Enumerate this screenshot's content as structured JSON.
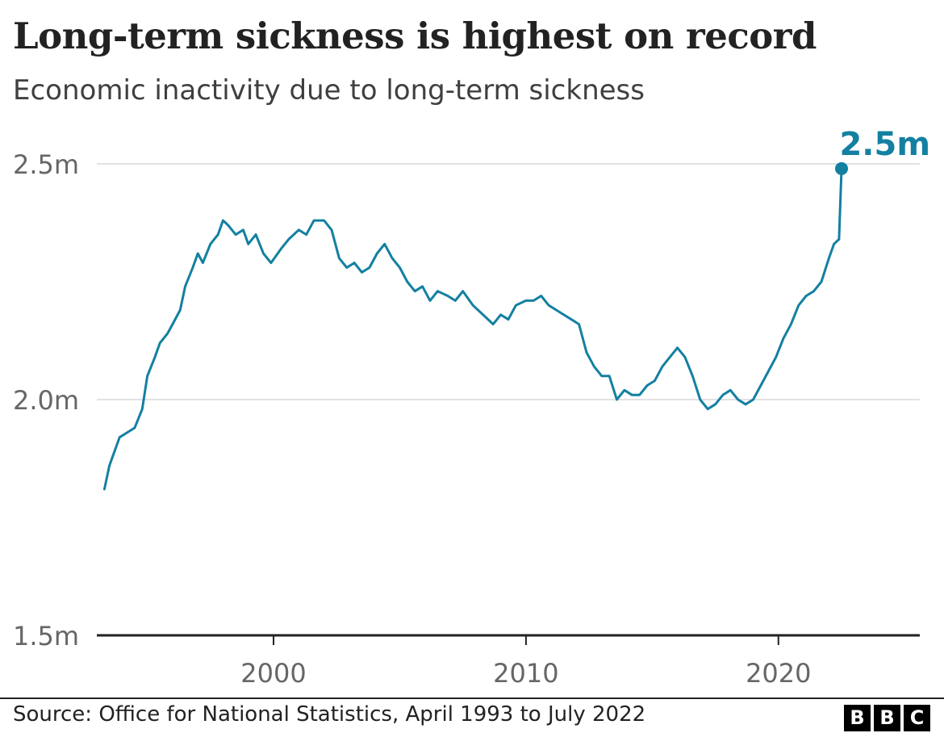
{
  "chart_data": {
    "type": "line",
    "title": "Long-term sickness is highest on record",
    "subtitle": "Economic inactivity due to long-term sickness",
    "source": "Source: Office for National Statistics, April 1993 to July 2022",
    "ylim": [
      1.5,
      2.5
    ],
    "xlim": [
      1993.0,
      2025.6
    ],
    "y_ticks": [
      {
        "value": 2.5,
        "label": "2.5m"
      },
      {
        "value": 2.0,
        "label": "2.0m"
      },
      {
        "value": 1.5,
        "label": "1.5m"
      }
    ],
    "x_ticks": [
      {
        "value": 2000,
        "label": "2000"
      },
      {
        "value": 2010,
        "label": "2010"
      },
      {
        "value": 2020,
        "label": "2020"
      }
    ],
    "grid": true,
    "line_color": "#1380a1",
    "grid_color": "#d9d9d9",
    "axis_color": "#222222",
    "annotation": {
      "x": 2022.5,
      "y": 2.49,
      "label": "2.5m"
    },
    "series": [
      {
        "x": [
          1993.3,
          1993.5,
          1993.7,
          1993.9,
          1994.2,
          1994.5,
          1994.8,
          1995.0,
          1995.3,
          1995.5,
          1995.8,
          1996.0,
          1996.3,
          1996.5,
          1996.8,
          1997.0,
          1997.2,
          1997.5,
          1997.8,
          1998.0,
          1998.2,
          1998.5,
          1998.8,
          1999.0,
          1999.3,
          1999.6,
          1999.9,
          2000.3,
          2000.6,
          2001.0,
          2001.3,
          2001.6,
          2002.0,
          2002.3,
          2002.6,
          2002.9,
          2003.2,
          2003.5,
          2003.8,
          2004.1,
          2004.4,
          2004.7,
          2005.0,
          2005.3,
          2005.6,
          2005.9,
          2006.2,
          2006.5,
          2006.9,
          2007.2,
          2007.5,
          2007.9,
          2008.3,
          2008.7,
          2009.0,
          2009.3,
          2009.6,
          2010.0,
          2010.3,
          2010.6,
          2010.9,
          2011.2,
          2011.5,
          2011.8,
          2012.1,
          2012.4,
          2012.7,
          2013.0,
          2013.3,
          2013.6,
          2013.9,
          2014.2,
          2014.5,
          2014.8,
          2015.1,
          2015.4,
          2015.7,
          2016.0,
          2016.3,
          2016.6,
          2016.9,
          2017.2,
          2017.5,
          2017.8,
          2018.1,
          2018.4,
          2018.7,
          2019.0,
          2019.3,
          2019.6,
          2019.9,
          2020.2,
          2020.5,
          2020.8,
          2021.1,
          2021.4,
          2021.7,
          2022.0,
          2022.2,
          2022.4,
          2022.5
        ],
        "values": [
          1.81,
          1.86,
          1.89,
          1.92,
          1.93,
          1.94,
          1.98,
          2.05,
          2.09,
          2.12,
          2.14,
          2.16,
          2.19,
          2.24,
          2.28,
          2.31,
          2.29,
          2.33,
          2.35,
          2.38,
          2.37,
          2.35,
          2.36,
          2.33,
          2.35,
          2.31,
          2.29,
          2.32,
          2.34,
          2.36,
          2.35,
          2.38,
          2.38,
          2.36,
          2.3,
          2.28,
          2.29,
          2.27,
          2.28,
          2.31,
          2.33,
          2.3,
          2.28,
          2.25,
          2.23,
          2.24,
          2.21,
          2.23,
          2.22,
          2.21,
          2.23,
          2.2,
          2.18,
          2.16,
          2.18,
          2.17,
          2.2,
          2.21,
          2.21,
          2.22,
          2.2,
          2.19,
          2.18,
          2.17,
          2.16,
          2.1,
          2.07,
          2.05,
          2.05,
          2.0,
          2.02,
          2.01,
          2.01,
          2.03,
          2.04,
          2.07,
          2.09,
          2.11,
          2.09,
          2.05,
          2.0,
          1.98,
          1.99,
          2.01,
          2.02,
          2.0,
          1.99,
          2.0,
          2.03,
          2.06,
          2.09,
          2.13,
          2.16,
          2.2,
          2.22,
          2.23,
          2.25,
          2.3,
          2.33,
          2.34,
          2.49
        ]
      }
    ]
  }
}
